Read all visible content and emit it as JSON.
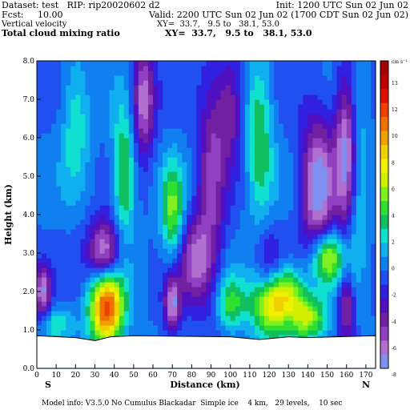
{
  "header": {
    "line1_left": "Dataset: test   RIP: rip20020602 d2",
    "line1_right": "Init: 1200 UTC Sun 02 Jun 02",
    "line2_left": "Fcst:     10.00",
    "line2_right": "Valid: 2200 UTC Sun 02 Jun 02 (1700 CDT Sun 02 Jun 02)",
    "line3_left": "Vertical velocity",
    "line3_right": "XY=  33.7,   9.5 to   38.1, 53.0",
    "line4_left": "Total cloud mixing ratio",
    "line4_right": "XY=  33.7,   9.5 to   38.1, 53.0"
  },
  "footer": "Model info: V3.5.0 No Cumulus Blackadar  Simple ice    4 km,   29 levels,    10 sec",
  "chart_data": {
    "type": "heatmap",
    "title": "Vertical velocity",
    "xlabel": "Distance (km)",
    "ylabel": "Height (km)",
    "xlim": [
      0,
      175
    ],
    "ylim": [
      0,
      8
    ],
    "x_ticks": [
      "0",
      "10",
      "20",
      "30",
      "40",
      "50",
      "60",
      "70",
      "80",
      "90",
      "100",
      "110",
      "120",
      "130",
      "140",
      "150",
      "160",
      "170"
    ],
    "y_ticks": [
      "0.0",
      "1.0",
      "2.0",
      "3.0",
      "4.0",
      "5.0",
      "6.0",
      "7.0",
      "8.0"
    ],
    "x_end_labels": {
      "left": "S",
      "right": "N"
    },
    "colorbar": {
      "unit": "cm s⁻¹",
      "levels": [
        -8,
        -7,
        -6,
        -5,
        -4,
        -3,
        -2,
        -1,
        0,
        1,
        2,
        3,
        4,
        5,
        6,
        7,
        8,
        9,
        10,
        11,
        12,
        13
      ],
      "labels": [
        "13",
        "12",
        "10",
        "8",
        "6",
        "4",
        "2",
        "0",
        "-2",
        "-4",
        "-6",
        "-8"
      ],
      "colors": [
        "#8090f0",
        "#b070d0",
        "#9040c0",
        "#7020a0",
        "#5010c0",
        "#3020e0",
        "#2050f0",
        "#1080f0",
        "#10b0f0",
        "#10e0d0",
        "#10c060",
        "#30e030",
        "#80f020",
        "#d0f000",
        "#f0f000",
        "#f0d000",
        "#f0a000",
        "#f07000",
        "#f04000",
        "#e01000",
        "#c00000",
        "#a00000"
      ]
    },
    "features": [
      {
        "x": 36,
        "z": 1.6,
        "value": 12,
        "sx": 6,
        "sz": 0.7
      },
      {
        "x": 125,
        "z": 1.7,
        "value": 11,
        "sx": 9,
        "sz": 0.6
      },
      {
        "x": 150,
        "z": 2.9,
        "value": 7,
        "sx": 6,
        "sz": 0.5
      },
      {
        "x": 140,
        "z": 1.3,
        "value": 5,
        "sx": 8,
        "sz": 0.4
      },
      {
        "x": 45,
        "z": 5.0,
        "value": 5,
        "sx": 4,
        "sz": 1.2
      },
      {
        "x": 70,
        "z": 4.1,
        "value": 5,
        "sx": 4,
        "sz": 0.9
      },
      {
        "x": 100,
        "z": 1.7,
        "value": 4,
        "sx": 5,
        "sz": 0.5
      },
      {
        "x": 10,
        "z": 1.2,
        "value": 3,
        "sx": 6,
        "sz": 0.3
      },
      {
        "x": 115,
        "z": 6.0,
        "value": 4,
        "sx": 5,
        "sz": 1.5
      },
      {
        "x": 165,
        "z": 5.0,
        "value": 3,
        "sx": 4,
        "sz": 2.0
      },
      {
        "x": 20,
        "z": 6.5,
        "value": 3,
        "sx": 5,
        "sz": 1.2
      },
      {
        "x": 35,
        "z": 3.0,
        "value": -7,
        "sx": 6,
        "sz": 0.6
      },
      {
        "x": 145,
        "z": 4.7,
        "value": -7,
        "sx": 6,
        "sz": 1.3
      },
      {
        "x": 160,
        "z": 5.7,
        "value": -7,
        "sx": 4,
        "sz": 1.5
      },
      {
        "x": 70,
        "z": 1.7,
        "value": -6,
        "sx": 3,
        "sz": 0.5
      },
      {
        "x": 130,
        "z": 1.3,
        "value": -4,
        "sx": 5,
        "sz": 0.4
      },
      {
        "x": 55,
        "z": 7.0,
        "value": -6,
        "sx": 4,
        "sz": 1.0
      },
      {
        "x": 3,
        "z": 2.0,
        "value": -6,
        "sx": 3,
        "sz": 0.5
      },
      {
        "x": 90,
        "z": 5.0,
        "value": -4,
        "sx": 5,
        "sz": 2.0
      },
      {
        "x": 82,
        "z": 2.8,
        "value": -5,
        "sx": 6,
        "sz": 0.8
      },
      {
        "x": 100,
        "z": 6.8,
        "value": -4,
        "sx": 5,
        "sz": 1.0
      },
      {
        "x": 120,
        "z": 2.5,
        "value": -3,
        "sx": 5,
        "sz": 0.8
      },
      {
        "x": 160,
        "z": 1.6,
        "value": -5,
        "sx": 3,
        "sz": 0.6
      }
    ],
    "background_value": -1,
    "terrain_km": [
      [
        0,
        0.85
      ],
      [
        20,
        0.8
      ],
      [
        30,
        0.72
      ],
      [
        38,
        0.82
      ],
      [
        50,
        0.85
      ],
      [
        100,
        0.82
      ],
      [
        115,
        0.75
      ],
      [
        130,
        0.82
      ],
      [
        140,
        0.8
      ],
      [
        175,
        0.85
      ]
    ]
  }
}
